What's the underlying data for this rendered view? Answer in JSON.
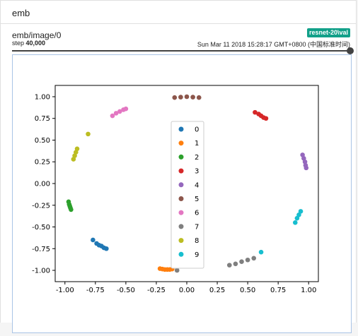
{
  "header": {
    "title": "emb"
  },
  "card": {
    "tag": "emb/image/0",
    "step_label": "step",
    "step_value": "40,000",
    "run": "resnet-20\\val",
    "timestamp": "Sun Mar 11 2018 15:28:17 GMT+0800 (中国标准时间)"
  },
  "chart_data": {
    "type": "scatter",
    "xlim": [
      -1.08,
      1.08
    ],
    "ylim": [
      -1.13,
      1.13
    ],
    "xticks": [
      "-1.00",
      "-0.75",
      "-0.50",
      "-0.25",
      "0.00",
      "0.25",
      "0.50",
      "0.75",
      "1.00"
    ],
    "xtick_values": [
      -1,
      -0.75,
      -0.5,
      -0.25,
      0,
      0.25,
      0.5,
      0.75,
      1
    ],
    "yticks": [
      "1.00",
      "0.75",
      "0.50",
      "0.25",
      "0.00",
      "-0.25",
      "-0.50",
      "-0.75",
      "-1.00"
    ],
    "ytick_values": [
      1,
      0.75,
      0.5,
      0.25,
      0,
      -0.25,
      -0.5,
      -0.75,
      -1
    ],
    "legend_position": "center",
    "series": [
      {
        "name": "0",
        "color": "#1f77b4",
        "points": [
          [
            -0.77,
            -0.65
          ],
          [
            -0.74,
            -0.69
          ],
          [
            -0.72,
            -0.71
          ],
          [
            -0.7,
            -0.72
          ],
          [
            -0.68,
            -0.74
          ],
          [
            -0.66,
            -0.75
          ]
        ]
      },
      {
        "name": "1",
        "color": "#ff7f0e",
        "points": [
          [
            -0.22,
            -0.98
          ],
          [
            -0.2,
            -0.985
          ],
          [
            -0.18,
            -0.99
          ],
          [
            -0.16,
            -0.99
          ],
          [
            -0.14,
            -0.99
          ],
          [
            -0.12,
            -0.985
          ]
        ]
      },
      {
        "name": "2",
        "color": "#2ca02c",
        "points": [
          [
            -0.97,
            -0.21
          ],
          [
            -0.965,
            -0.24
          ],
          [
            -0.96,
            -0.26
          ],
          [
            -0.955,
            -0.28
          ],
          [
            -0.95,
            -0.3
          ]
        ]
      },
      {
        "name": "3",
        "color": "#d62728",
        "points": [
          [
            0.56,
            0.82
          ],
          [
            0.59,
            0.8
          ],
          [
            0.61,
            0.78
          ],
          [
            0.63,
            0.76
          ],
          [
            0.65,
            0.75
          ]
        ]
      },
      {
        "name": "4",
        "color": "#9467bd",
        "points": [
          [
            0.95,
            0.33
          ],
          [
            0.96,
            0.29
          ],
          [
            0.97,
            0.25
          ],
          [
            0.975,
            0.21
          ],
          [
            0.98,
            0.18
          ]
        ]
      },
      {
        "name": "5",
        "color": "#8c564b",
        "points": [
          [
            -0.1,
            0.99
          ],
          [
            -0.05,
            0.995
          ],
          [
            0.0,
            1.0
          ],
          [
            0.05,
            0.995
          ],
          [
            0.1,
            0.99
          ]
        ]
      },
      {
        "name": "6",
        "color": "#e377c2",
        "points": [
          [
            -0.61,
            0.78
          ],
          [
            -0.58,
            0.81
          ],
          [
            -0.55,
            0.83
          ],
          [
            -0.52,
            0.85
          ],
          [
            -0.5,
            0.86
          ]
        ]
      },
      {
        "name": "7",
        "color": "#7f7f7f",
        "points": [
          [
            -0.08,
            -1.0
          ],
          [
            0.35,
            -0.94
          ],
          [
            0.4,
            -0.925
          ],
          [
            0.45,
            -0.9
          ],
          [
            0.5,
            -0.88
          ],
          [
            0.55,
            -0.86
          ]
        ]
      },
      {
        "name": "8",
        "color": "#bcbd22",
        "points": [
          [
            -0.81,
            0.57
          ],
          [
            -0.93,
            0.28
          ],
          [
            -0.92,
            0.32
          ],
          [
            -0.91,
            0.36
          ],
          [
            -0.9,
            0.4
          ]
        ]
      },
      {
        "name": "9",
        "color": "#17becf",
        "points": [
          [
            0.61,
            -0.79
          ],
          [
            0.89,
            -0.45
          ],
          [
            0.905,
            -0.4
          ],
          [
            0.92,
            -0.36
          ],
          [
            0.935,
            -0.32
          ]
        ]
      }
    ]
  }
}
